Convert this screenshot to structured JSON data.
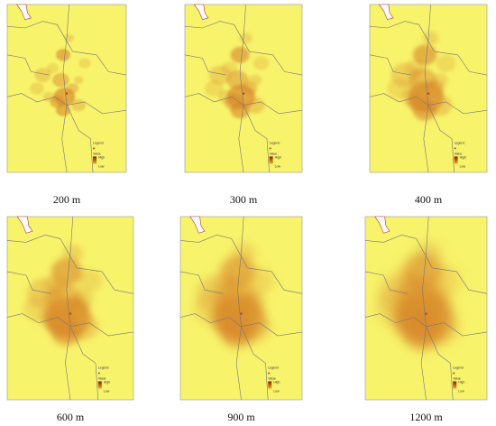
{
  "panels": [
    {
      "caption": "200 m"
    },
    {
      "caption": "300 m"
    },
    {
      "caption": "400 m"
    },
    {
      "caption": "600 m"
    },
    {
      "caption": "900 m"
    },
    {
      "caption": "1200 m"
    }
  ],
  "legend": {
    "title": "Legend",
    "value": "Value",
    "high": "High",
    "low": "Low"
  }
}
